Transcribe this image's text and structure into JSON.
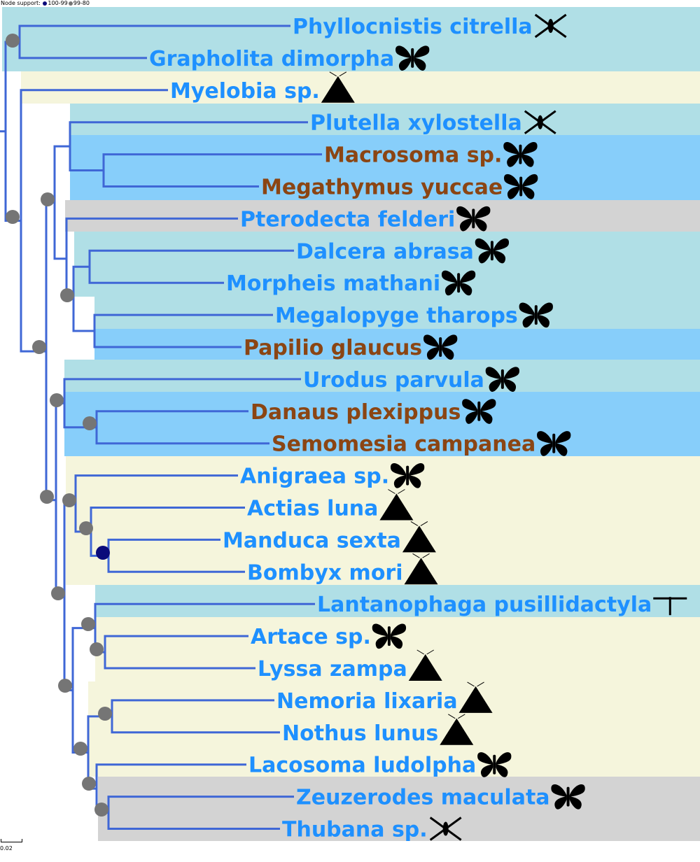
{
  "legend": {
    "title": "Node support:",
    "items": [
      {
        "label": "100-99",
        "color": "#0a0a7a"
      },
      {
        "label": "99-80",
        "color": "#757575"
      }
    ]
  },
  "scale_bar": {
    "label": "0.02"
  },
  "colors": {
    "branch": "#3f67d6",
    "label_blue": "#1e90ff",
    "label_brown": "#8b4513",
    "band_cyan": "#b0dfe6",
    "band_blue": "#87cefa",
    "band_cream": "#f5f5dc",
    "band_gray": "#d3d3d3",
    "node_gray": "#757575",
    "node_navy": "#0a0a7a"
  },
  "taxa": [
    {
      "name": "Phyllocnistis citrella",
      "color": "label_blue",
      "icon": "microlepidoptera-silhouette-icon"
    },
    {
      "name": "Grapholita dimorpha",
      "color": "label_blue",
      "icon": "moth-silhouette-icon"
    },
    {
      "name": "Myelobia sp.",
      "color": "label_blue",
      "icon": "moth-resting-silhouette-icon"
    },
    {
      "name": "Plutella xylostella",
      "color": "label_blue",
      "icon": "microlepidoptera-silhouette-icon"
    },
    {
      "name": "Macrosoma sp.",
      "color": "label_brown",
      "icon": "butterfly-silhouette-icon"
    },
    {
      "name": "Megathymus yuccae",
      "color": "label_brown",
      "icon": "butterfly-silhouette-icon"
    },
    {
      "name": "Pterodecta felderi",
      "color": "label_blue",
      "icon": "moth-silhouette-icon"
    },
    {
      "name": "Dalcera abrasa",
      "color": "label_blue",
      "icon": "moth-silhouette-icon"
    },
    {
      "name": "Morpheis mathani",
      "color": "label_blue",
      "icon": "moth-silhouette-icon"
    },
    {
      "name": "Megalopyge tharops",
      "color": "label_blue",
      "icon": "moth-silhouette-icon"
    },
    {
      "name": "Papilio glaucus",
      "color": "label_brown",
      "icon": "butterfly-silhouette-icon"
    },
    {
      "name": "Urodus parvula",
      "color": "label_blue",
      "icon": "moth-silhouette-icon"
    },
    {
      "name": "Danaus plexippus",
      "color": "label_brown",
      "icon": "butterfly-silhouette-icon"
    },
    {
      "name": "Semomesia campanea",
      "color": "label_brown",
      "icon": "butterfly-silhouette-icon"
    },
    {
      "name": "Anigraea sp.",
      "color": "label_blue",
      "icon": "moth-silhouette-icon"
    },
    {
      "name": "Actias luna",
      "color": "label_blue",
      "icon": "moth-resting-silhouette-icon"
    },
    {
      "name": "Manduca sexta",
      "color": "label_blue",
      "icon": "moth-resting-silhouette-icon"
    },
    {
      "name": "Bombyx mori",
      "color": "label_blue",
      "icon": "moth-resting-silhouette-icon"
    },
    {
      "name": "Lantanophaga pusillidactyla",
      "color": "label_blue",
      "icon": "plume-moth-silhouette-icon"
    },
    {
      "name": "Artace sp.",
      "color": "label_blue",
      "icon": "moth-silhouette-icon"
    },
    {
      "name": "Lyssa zampa",
      "color": "label_blue",
      "icon": "moth-resting-silhouette-icon"
    },
    {
      "name": "Nemoria lixaria",
      "color": "label_blue",
      "icon": "moth-resting-silhouette-icon"
    },
    {
      "name": "Nothus lunus",
      "color": "label_blue",
      "icon": "moth-resting-silhouette-icon"
    },
    {
      "name": "Lacosoma ludolpha",
      "color": "label_blue",
      "icon": "moth-silhouette-icon"
    },
    {
      "name": "Zeuzerodes maculata",
      "color": "label_blue",
      "icon": "moth-silhouette-icon"
    },
    {
      "name": "Thubana sp.",
      "color": "label_blue",
      "icon": "microlepidoptera-silhouette-icon"
    }
  ],
  "nodes": [
    {
      "id": "n01",
      "children": [
        "Phyllocnistis citrella",
        "Grapholita dimorpha"
      ],
      "support": null
    },
    {
      "id": "n34",
      "children": [
        "Macrosoma sp.",
        "Megathymus yuccae"
      ],
      "support": null
    },
    {
      "id": "n234",
      "children": [
        "Plutella xylostella",
        "n34"
      ],
      "support": null
    },
    {
      "id": "n78",
      "children": [
        "Dalcera abrasa",
        "Morpheis mathani"
      ],
      "support": null
    },
    {
      "id": "n910",
      "children": [
        "Megalopyge tharops",
        "Papilio glaucus"
      ],
      "support": null
    },
    {
      "id": "nDal",
      "children": [
        "n78",
        "n910"
      ],
      "support": "99-80"
    },
    {
      "id": "nPter",
      "children": [
        "Pterodecta felderi",
        "nDal"
      ],
      "support": null
    },
    {
      "id": "nPlut",
      "children": [
        "n234",
        "nPter"
      ],
      "support": "99-80"
    },
    {
      "id": "nDan",
      "children": [
        "Danaus plexippus",
        "Semomesia campanea"
      ],
      "support": "100-99"
    },
    {
      "id": "nUro",
      "children": [
        "Urodus parvula",
        "nDan"
      ],
      "support": "99-80"
    },
    {
      "id": "nMan",
      "children": [
        "Manduca sexta",
        "Bombyx mori"
      ],
      "support": "100-99"
    },
    {
      "id": "nAct",
      "children": [
        "Actias luna",
        "nMan"
      ],
      "support": "99-80"
    },
    {
      "id": "nAni",
      "children": [
        "Anigraea sp.",
        "nAct"
      ],
      "support": "99-80"
    },
    {
      "id": "nArt",
      "children": [
        "Artace sp.",
        "Lyssa zampa"
      ],
      "support": "99-80"
    },
    {
      "id": "nLant",
      "children": [
        "Lantanophaga pusillidactyla",
        "nArt"
      ],
      "support": "99-80"
    },
    {
      "id": "nNem",
      "children": [
        "Nemoria lixaria",
        "Nothus lunus"
      ],
      "support": "99-80"
    },
    {
      "id": "nZeu",
      "children": [
        "Zeuzerodes maculata",
        "Thubana sp."
      ],
      "support": "99-80"
    },
    {
      "id": "nLac",
      "children": [
        "Lacosoma ludolpha",
        "nZeu"
      ],
      "support": "99-80"
    },
    {
      "id": "nNemLac",
      "children": [
        "nNem",
        "nLac"
      ],
      "support": "99-80"
    },
    {
      "id": "nLantNem",
      "children": [
        "nLant",
        "nNemLac"
      ],
      "support": "99-80"
    },
    {
      "id": "nAniLant",
      "children": [
        "nAni",
        "nLantNem"
      ],
      "support": "99-80"
    },
    {
      "id": "nUroAni",
      "children": [
        "nUro",
        "nAniLant"
      ],
      "support": "99-80"
    },
    {
      "id": "nBig",
      "children": [
        "nPlut",
        "nUroAni"
      ],
      "support": "99-80"
    },
    {
      "id": "nMye",
      "children": [
        "Myelobia sp.",
        "nBig"
      ],
      "support": "99-80"
    },
    {
      "id": "nRoot",
      "children": [
        "n01",
        "nMye"
      ],
      "support": "99-80"
    }
  ]
}
